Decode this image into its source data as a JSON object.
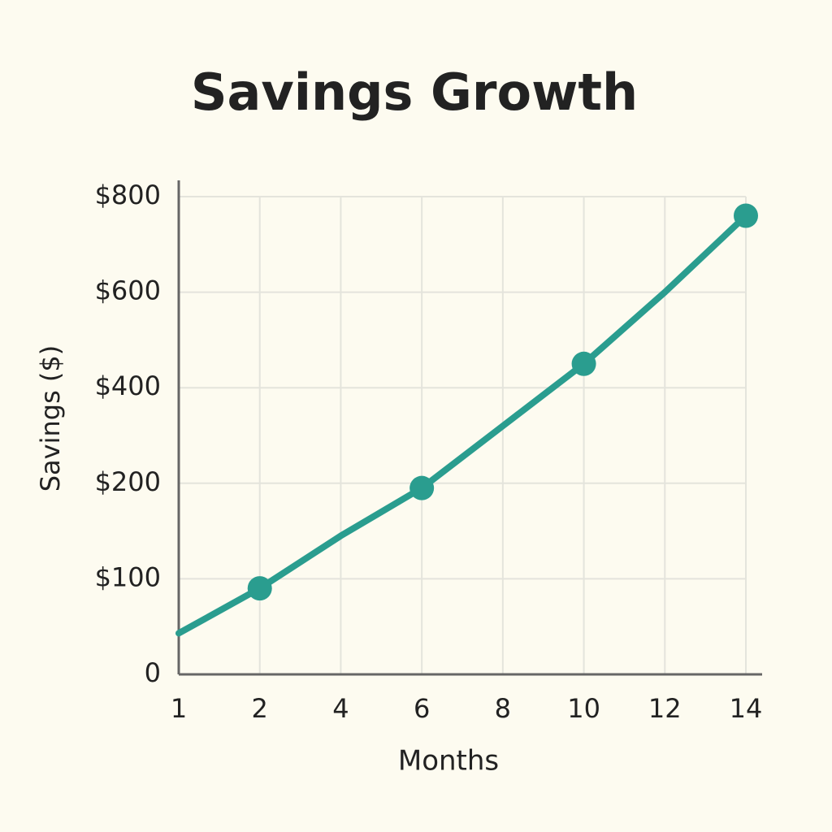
{
  "chart_data": {
    "type": "line",
    "title": "Savings Growth",
    "x_label": "Months",
    "y_label": "Savings ($)",
    "series": [
      {
        "color": "#2a9d8f",
        "x": [
          1,
          2,
          4,
          6,
          8,
          10,
          12,
          14
        ],
        "values": [
          43,
          90,
          145,
          195,
          320,
          450,
          600,
          760
        ]
      }
    ],
    "points": {
      "color": "#2a9d8f",
      "x": [
        2,
        6,
        10,
        14
      ],
      "values": [
        90,
        195,
        450,
        760
      ]
    },
    "xlim": [
      1,
      14
    ],
    "xticks": [
      1,
      2,
      4,
      6,
      8,
      10,
      12,
      14
    ],
    "ylim": [
      0,
      800
    ],
    "yticks": [
      0,
      {
        "value": 100,
        "label": "$100"
      },
      {
        "value": 200,
        "label": "$200"
      },
      {
        "value": 400,
        "label": "$400"
      },
      {
        "value": 600,
        "label": "$600"
      },
      {
        "value": 800,
        "label": "$800"
      }
    ],
    "grid": true
  }
}
